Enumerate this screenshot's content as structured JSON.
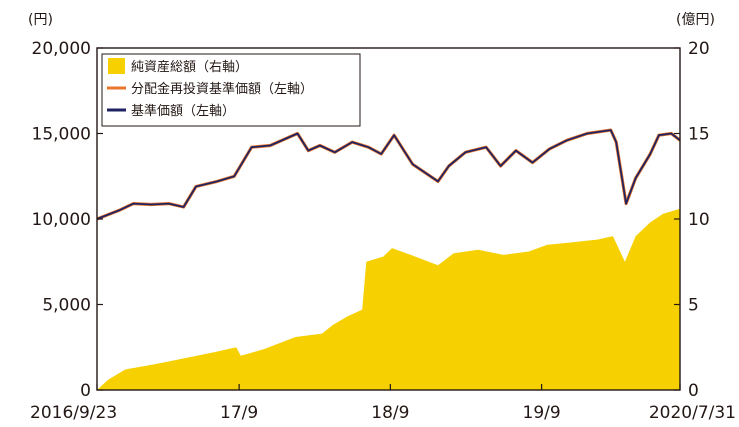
{
  "chart_data": {
    "type": "area",
    "left_unit": "(円)",
    "right_unit": "(億円)",
    "left_axis": {
      "ticks": [
        "20,000",
        "15,000",
        "10,000",
        "5,000",
        "0"
      ],
      "range": [
        0,
        20000
      ]
    },
    "right_axis": {
      "ticks": [
        "20",
        "15",
        "10",
        "5",
        "0"
      ],
      "range": [
        0,
        20
      ]
    },
    "x_ticks": [
      "2016/9/23",
      "17/9",
      "18/9",
      "19/9",
      "2020/7/31"
    ],
    "x_tick_dates": [
      "2016-09-23",
      "2017-09-01",
      "2018-09-01",
      "2019-09-01",
      "2020-07-31"
    ],
    "legend": [
      {
        "label": "純資産総額（右軸）",
        "color": "#F6D000",
        "kind": "swatch"
      },
      {
        "label": "分配金再投資基準価額（左軸）",
        "color": "#E8762B",
        "kind": "line"
      },
      {
        "label": "基準価額（左軸）",
        "color": "#1F2363",
        "kind": "line"
      }
    ],
    "series": [
      {
        "name": "純資産総額（右軸）",
        "axis": "right",
        "color": "#F6D000",
        "points": [
          [
            "2016-09-23",
            0.0
          ],
          [
            "2016-10-20",
            0.6
          ],
          [
            "2016-11-30",
            1.2
          ],
          [
            "2017-01-15",
            1.4
          ],
          [
            "2017-03-01",
            1.6
          ],
          [
            "2017-05-01",
            1.9
          ],
          [
            "2017-07-01",
            2.2
          ],
          [
            "2017-08-25",
            2.5
          ],
          [
            "2017-09-05",
            2.0
          ],
          [
            "2017-11-01",
            2.4
          ],
          [
            "2018-01-15",
            3.1
          ],
          [
            "2018-03-20",
            3.3
          ],
          [
            "2018-04-15",
            3.8
          ],
          [
            "2018-05-20",
            4.3
          ],
          [
            "2018-06-25",
            4.7
          ],
          [
            "2018-07-05",
            7.5
          ],
          [
            "2018-08-15",
            7.8
          ],
          [
            "2018-09-05",
            8.3
          ],
          [
            "2018-10-20",
            7.9
          ],
          [
            "2018-12-25",
            7.3
          ],
          [
            "2019-02-01",
            8.0
          ],
          [
            "2019-04-01",
            8.2
          ],
          [
            "2019-06-01",
            7.9
          ],
          [
            "2019-08-01",
            8.1
          ],
          [
            "2019-09-15",
            8.5
          ],
          [
            "2019-11-01",
            8.6
          ],
          [
            "2020-01-15",
            8.8
          ],
          [
            "2020-02-20",
            9.0
          ],
          [
            "2020-03-20",
            7.5
          ],
          [
            "2020-04-15",
            9.0
          ],
          [
            "2020-05-20",
            9.8
          ],
          [
            "2020-06-20",
            10.3
          ],
          [
            "2020-07-31",
            10.6
          ]
        ]
      },
      {
        "name": "分配金再投資基準価額（左軸）",
        "axis": "left",
        "color": "#E8762B",
        "points": [
          [
            "2016-09-23",
            10000
          ],
          [
            "2016-11-15",
            10500
          ],
          [
            "2016-12-20",
            10900
          ],
          [
            "2017-02-01",
            10850
          ],
          [
            "2017-03-15",
            10900
          ],
          [
            "2017-04-20",
            10700
          ],
          [
            "2017-05-20",
            11900
          ],
          [
            "2017-07-10",
            12200
          ],
          [
            "2017-08-20",
            12500
          ],
          [
            "2017-10-01",
            14200
          ],
          [
            "2017-11-15",
            14300
          ],
          [
            "2018-01-20",
            15000
          ],
          [
            "2018-02-15",
            14000
          ],
          [
            "2018-03-15",
            14300
          ],
          [
            "2018-04-20",
            13900
          ],
          [
            "2018-06-01",
            14500
          ],
          [
            "2018-07-10",
            14200
          ],
          [
            "2018-08-10",
            13800
          ],
          [
            "2018-09-10",
            14900
          ],
          [
            "2018-10-25",
            13200
          ],
          [
            "2018-12-25",
            12200
          ],
          [
            "2019-01-20",
            13100
          ],
          [
            "2019-03-01",
            13900
          ],
          [
            "2019-04-20",
            14200
          ],
          [
            "2019-05-25",
            13100
          ],
          [
            "2019-07-01",
            14000
          ],
          [
            "2019-08-10",
            13300
          ],
          [
            "2019-09-20",
            14100
          ],
          [
            "2019-11-01",
            14600
          ],
          [
            "2019-12-20",
            15000
          ],
          [
            "2020-02-15",
            15200
          ],
          [
            "2020-02-28",
            14500
          ],
          [
            "2020-03-23",
            10900
          ],
          [
            "2020-04-15",
            12400
          ],
          [
            "2020-05-20",
            13800
          ],
          [
            "2020-06-10",
            14900
          ],
          [
            "2020-07-10",
            15000
          ],
          [
            "2020-07-31",
            14600
          ]
        ]
      },
      {
        "name": "基準価額（左軸）",
        "axis": "left",
        "color": "#1F2363",
        "points": [
          [
            "2016-09-23",
            10000
          ],
          [
            "2016-11-15",
            10500
          ],
          [
            "2016-12-20",
            10900
          ],
          [
            "2017-02-01",
            10850
          ],
          [
            "2017-03-15",
            10900
          ],
          [
            "2017-04-20",
            10700
          ],
          [
            "2017-05-20",
            11900
          ],
          [
            "2017-07-10",
            12200
          ],
          [
            "2017-08-20",
            12500
          ],
          [
            "2017-10-01",
            14200
          ],
          [
            "2017-11-15",
            14300
          ],
          [
            "2018-01-20",
            15000
          ],
          [
            "2018-02-15",
            14000
          ],
          [
            "2018-03-15",
            14300
          ],
          [
            "2018-04-20",
            13900
          ],
          [
            "2018-06-01",
            14500
          ],
          [
            "2018-07-10",
            14200
          ],
          [
            "2018-08-10",
            13800
          ],
          [
            "2018-09-10",
            14900
          ],
          [
            "2018-10-25",
            13200
          ],
          [
            "2018-12-25",
            12200
          ],
          [
            "2019-01-20",
            13100
          ],
          [
            "2019-03-01",
            13900
          ],
          [
            "2019-04-20",
            14200
          ],
          [
            "2019-05-25",
            13100
          ],
          [
            "2019-07-01",
            14000
          ],
          [
            "2019-08-10",
            13300
          ],
          [
            "2019-09-20",
            14100
          ],
          [
            "2019-11-01",
            14600
          ],
          [
            "2019-12-20",
            15000
          ],
          [
            "2020-02-15",
            15200
          ],
          [
            "2020-02-28",
            14500
          ],
          [
            "2020-03-23",
            10900
          ],
          [
            "2020-04-15",
            12400
          ],
          [
            "2020-05-20",
            13800
          ],
          [
            "2020-06-10",
            14900
          ],
          [
            "2020-07-10",
            15000
          ],
          [
            "2020-07-31",
            14600
          ]
        ]
      }
    ],
    "grid": false,
    "legend_position": "top-left"
  }
}
